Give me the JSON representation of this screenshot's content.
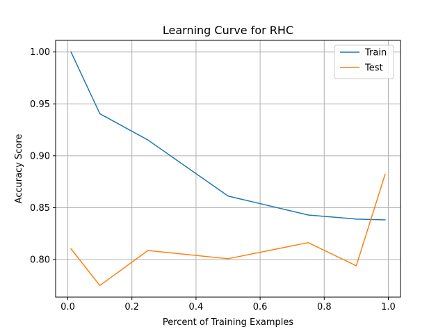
{
  "chart_data": {
    "type": "line",
    "title": "Learning Curve for RHC",
    "xlabel": "Percent of Training Examples",
    "ylabel": "Accuracy Score",
    "xlim": [
      -0.038,
      1.038
    ],
    "ylim": [
      0.7638,
      1.0112
    ],
    "xticks": [
      0.0,
      0.2,
      0.4,
      0.6,
      0.8,
      1.0
    ],
    "xtick_labels": [
      "0.0",
      "0.2",
      "0.4",
      "0.6",
      "0.8",
      "1.0"
    ],
    "yticks": [
      0.8,
      0.85,
      0.9,
      0.95,
      1.0
    ],
    "ytick_labels": [
      "0.80",
      "0.85",
      "0.90",
      "0.95",
      "1.00"
    ],
    "grid": true,
    "legend_position": "top-right",
    "x": [
      0.01,
      0.1,
      0.25,
      0.5,
      0.75,
      0.9,
      0.99
    ],
    "series": [
      {
        "name": "Train",
        "color": "#1f77b4",
        "values": [
          1.0,
          0.9405,
          0.9152,
          0.8612,
          0.8429,
          0.839,
          0.8382
        ]
      },
      {
        "name": "Test",
        "color": "#ff7f0e",
        "values": [
          0.8103,
          0.775,
          0.8087,
          0.8008,
          0.8163,
          0.794,
          0.8822
        ]
      }
    ]
  }
}
